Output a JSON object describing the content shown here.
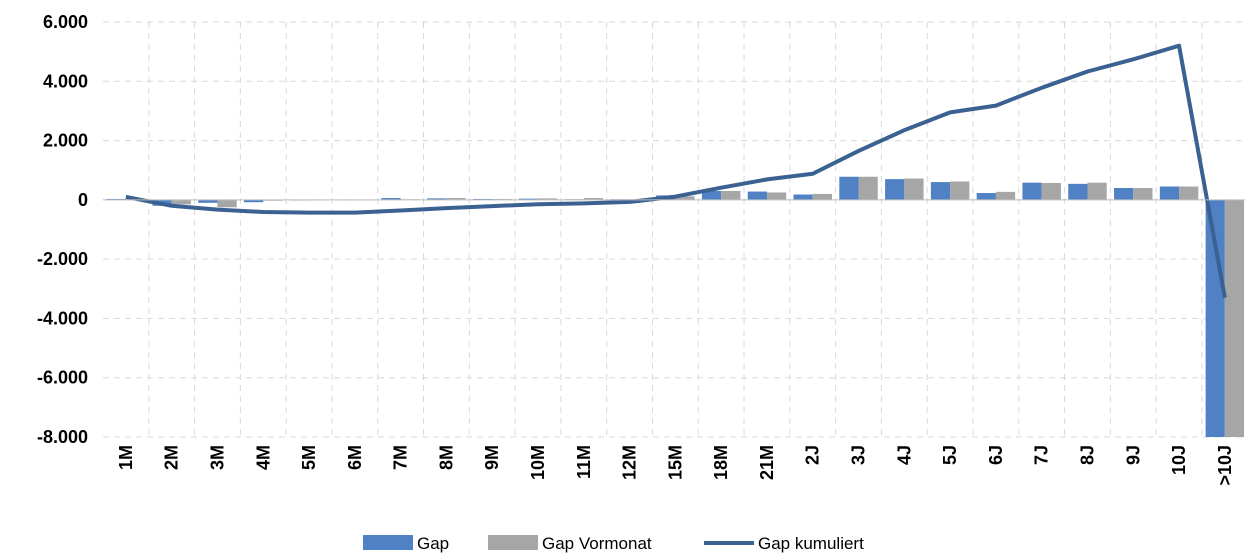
{
  "chart_data": {
    "type": "bar-line",
    "categories": [
      "1M",
      "2M",
      "3M",
      "4M",
      "5M",
      "6M",
      "7M",
      "8M",
      "9M",
      "10M",
      "11M",
      "12M",
      "15M",
      "18M",
      "21M",
      "2J",
      "3J",
      "4J",
      "5J",
      "6J",
      "7J",
      "8J",
      "9J",
      "10J",
      ">10J"
    ],
    "series": [
      {
        "name": "Gap",
        "type": "bar",
        "color": "#4f81c4",
        "values": [
          30,
          -200,
          -100,
          -80,
          -20,
          -10,
          60,
          50,
          30,
          40,
          20,
          20,
          150,
          300,
          280,
          180,
          780,
          700,
          600,
          230,
          580,
          540,
          400,
          450,
          -8100
        ]
      },
      {
        "name": "Gap Vormonat",
        "type": "bar",
        "color": "#a6a6a6",
        "values": [
          20,
          -150,
          -250,
          -30,
          -20,
          -10,
          20,
          60,
          30,
          50,
          60,
          20,
          120,
          300,
          250,
          200,
          780,
          720,
          620,
          270,
          570,
          580,
          400,
          450,
          -8200
        ]
      },
      {
        "name": "Gap kumuliert",
        "type": "line",
        "color": "#3a6191",
        "values": [
          100,
          -200,
          -330,
          -410,
          -430,
          -430,
          -360,
          -280,
          -210,
          -150,
          -120,
          -70,
          110,
          410,
          690,
          880,
          1650,
          2350,
          2950,
          3180,
          3780,
          4330,
          4740,
          5200,
          -3300
        ]
      }
    ],
    "ylim": [
      -8000,
      6000
    ],
    "yticks": [
      {
        "value": -8000,
        "label": "-8.000"
      },
      {
        "value": -6000,
        "label": "-6.000"
      },
      {
        "value": -4000,
        "label": "-4.000"
      },
      {
        "value": -2000,
        "label": "-2.000"
      },
      0,
      {
        "value": 2000,
        "label": "2.000"
      },
      {
        "value": 4000,
        "label": "4.000"
      },
      {
        "value": 6000,
        "label": "6.000"
      }
    ],
    "grid": true,
    "legend": "bottom"
  }
}
